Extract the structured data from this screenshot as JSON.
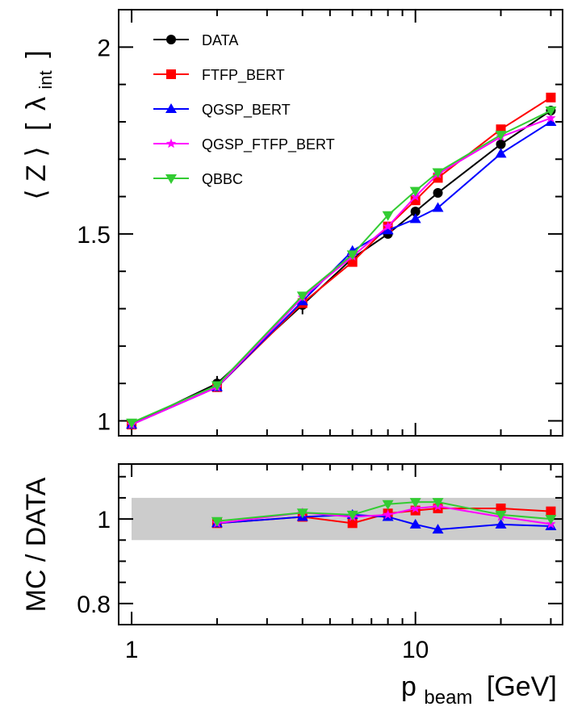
{
  "chart_data": [
    {
      "type": "line",
      "ylabel_main": "⟨ Z ⟩",
      "ylabel_bracket_open": "[",
      "ylabel_symbol": "λ",
      "ylabel_subscript": "int",
      "ylabel_bracket_close": "]",
      "xscale": "log",
      "xlim": [
        0.9,
        33
      ],
      "ylim": [
        0.96,
        2.1
      ],
      "yticks": [
        1,
        1.5,
        2
      ],
      "ytick_labels": [
        "1",
        "1.5",
        "2"
      ],
      "legend_placement": "top-left",
      "x": [
        1,
        2,
        4,
        6,
        8,
        10,
        12,
        20,
        30
      ],
      "series": [
        {
          "name": "DATA",
          "color": "#000000",
          "marker": "circle",
          "values": [
            0.99,
            1.1,
            1.31,
            1.435,
            1.5,
            1.56,
            1.61,
            1.74,
            1.83
          ],
          "errors": [
            0.01,
            0.02,
            0.025,
            0.015,
            0.01,
            0.01,
            0.01,
            0.01,
            0.01
          ]
        },
        {
          "name": "FTFP_BERT",
          "color": "#ff0000",
          "marker": "square",
          "values": [
            0.99,
            1.09,
            1.315,
            1.425,
            1.52,
            1.59,
            1.65,
            1.78,
            1.865
          ]
        },
        {
          "name": "QGSP_BERT",
          "color": "#0000ff",
          "marker": "triangle-up",
          "values": [
            0.99,
            1.09,
            1.32,
            1.455,
            1.51,
            1.54,
            1.57,
            1.715,
            1.8
          ]
        },
        {
          "name": "QGSP_FTFP_BERT",
          "color": "#ff00ff",
          "marker": "star",
          "values": [
            0.99,
            1.09,
            1.33,
            1.44,
            1.52,
            1.6,
            1.66,
            1.76,
            1.81
          ]
        },
        {
          "name": "QBBC",
          "color": "#33cc33",
          "marker": "triangle-down",
          "values": [
            0.995,
            1.095,
            1.335,
            1.445,
            1.55,
            1.615,
            1.665,
            1.765,
            1.83
          ]
        }
      ]
    },
    {
      "type": "line",
      "ylabel": "MC / DATA",
      "xlabel_main": "p",
      "xlabel_subscript": "beam",
      "xlabel_unit": "[GeV]",
      "xscale": "log",
      "xlim": [
        0.9,
        33
      ],
      "ylim": [
        0.75,
        1.13
      ],
      "yticks": [
        0.8,
        1
      ],
      "ytick_labels": [
        "0.8",
        "1"
      ],
      "xticks": [
        1,
        10
      ],
      "xtick_labels": [
        "1",
        "10"
      ],
      "band": [
        0.95,
        1.05
      ],
      "band_color": "#cccccc",
      "x": [
        2,
        4,
        6,
        8,
        10,
        12,
        20,
        30
      ],
      "series": [
        {
          "name": "FTFP_BERT",
          "color": "#ff0000",
          "marker": "square",
          "values": [
            0.99,
            1.005,
            0.99,
            1.013,
            1.02,
            1.025,
            1.025,
            1.018
          ]
        },
        {
          "name": "QGSP_BERT",
          "color": "#0000ff",
          "marker": "triangle-up",
          "values": [
            0.99,
            1.005,
            1.01,
            1.005,
            0.987,
            0.975,
            0.987,
            0.983
          ]
        },
        {
          "name": "QGSP_FTFP_BERT",
          "color": "#ff00ff",
          "marker": "star",
          "values": [
            0.99,
            1.015,
            1.005,
            1.01,
            1.025,
            1.03,
            1.005,
            0.988
          ]
        },
        {
          "name": "QBBC",
          "color": "#33cc33",
          "marker": "triangle-down",
          "values": [
            0.995,
            1.015,
            1.01,
            1.035,
            1.04,
            1.04,
            1.01,
            1.0
          ]
        }
      ]
    }
  ]
}
